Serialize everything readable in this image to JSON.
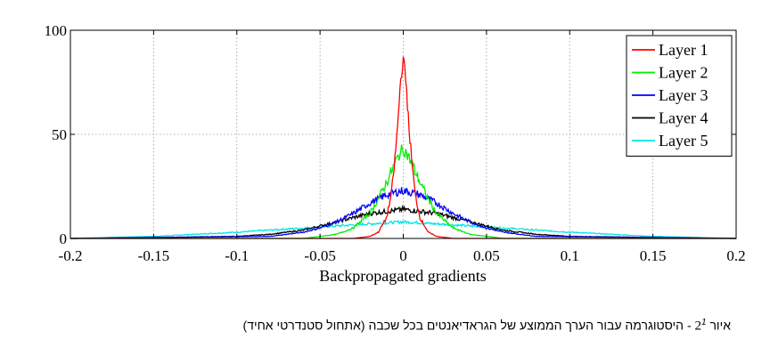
{
  "chart_data": {
    "type": "line",
    "title": "",
    "xlabel": "Backpropagated gradients",
    "ylabel": "",
    "xlim": [
      -0.2,
      0.2
    ],
    "ylim": [
      0,
      100
    ],
    "xticks": [
      "-0.2",
      "-0.15",
      "-0.1",
      "-0.05",
      "0",
      "0.05",
      "0.1",
      "0.15",
      "0.2"
    ],
    "yticks": [
      "0",
      "50",
      "100"
    ],
    "grid": true,
    "legend_position": "top-right",
    "series": [
      {
        "name": "Layer 1",
        "color": "#ff0000",
        "x": [
          -0.2,
          -0.03,
          -0.02,
          -0.015,
          -0.01,
          -0.007,
          -0.005,
          -0.003,
          -0.002,
          -0.001,
          0,
          0.001,
          0.002,
          0.003,
          0.005,
          0.007,
          0.01,
          0.015,
          0.02,
          0.03,
          0.2
        ],
        "y": [
          0,
          0,
          1,
          3,
          10,
          22,
          38,
          58,
          72,
          80,
          86,
          80,
          72,
          58,
          38,
          22,
          10,
          3,
          1,
          0,
          0
        ]
      },
      {
        "name": "Layer 2",
        "color": "#00ee00",
        "x": [
          -0.2,
          -0.06,
          -0.04,
          -0.03,
          -0.02,
          -0.015,
          -0.01,
          -0.005,
          -0.002,
          0,
          0.002,
          0.005,
          0.01,
          0.015,
          0.02,
          0.03,
          0.04,
          0.06,
          0.2
        ],
        "y": [
          0,
          0,
          2,
          5,
          12,
          19,
          27,
          36,
          41,
          43,
          41,
          36,
          27,
          19,
          12,
          5,
          2,
          0,
          0
        ]
      },
      {
        "name": "Layer 3",
        "color": "#0000ff",
        "x": [
          -0.2,
          -0.08,
          -0.06,
          -0.05,
          -0.04,
          -0.03,
          -0.02,
          -0.01,
          0,
          0.01,
          0.02,
          0.03,
          0.04,
          0.05,
          0.06,
          0.08,
          0.2
        ],
        "y": [
          0,
          1,
          3,
          5,
          8,
          12,
          17,
          21,
          23,
          21,
          17,
          12,
          8,
          5,
          3,
          1,
          0
        ]
      },
      {
        "name": "Layer 4",
        "color": "#000000",
        "x": [
          -0.2,
          -0.1,
          -0.08,
          -0.06,
          -0.04,
          -0.02,
          0,
          0.02,
          0.04,
          0.06,
          0.08,
          0.1,
          0.2
        ],
        "y": [
          0,
          1,
          2,
          4,
          8,
          12,
          14,
          12,
          8,
          4,
          2,
          1,
          0
        ]
      },
      {
        "name": "Layer 5",
        "color": "#00e5e5",
        "x": [
          -0.2,
          -0.15,
          -0.1,
          -0.08,
          -0.06,
          -0.04,
          -0.02,
          0,
          0.02,
          0.04,
          0.06,
          0.08,
          0.1,
          0.15,
          0.2
        ],
        "y": [
          0,
          1,
          3,
          4,
          5,
          6,
          7,
          8,
          7,
          6,
          5,
          4,
          3,
          1,
          0
        ]
      }
    ]
  },
  "caption": {
    "prefix": "איור",
    "number": "2",
    "sup": "1",
    "text": "- היסטוגרמה עבור הערך הממוצע של הגראדיאנטים בכל שכבה (אתחול סטנדרטי אחיד)"
  }
}
